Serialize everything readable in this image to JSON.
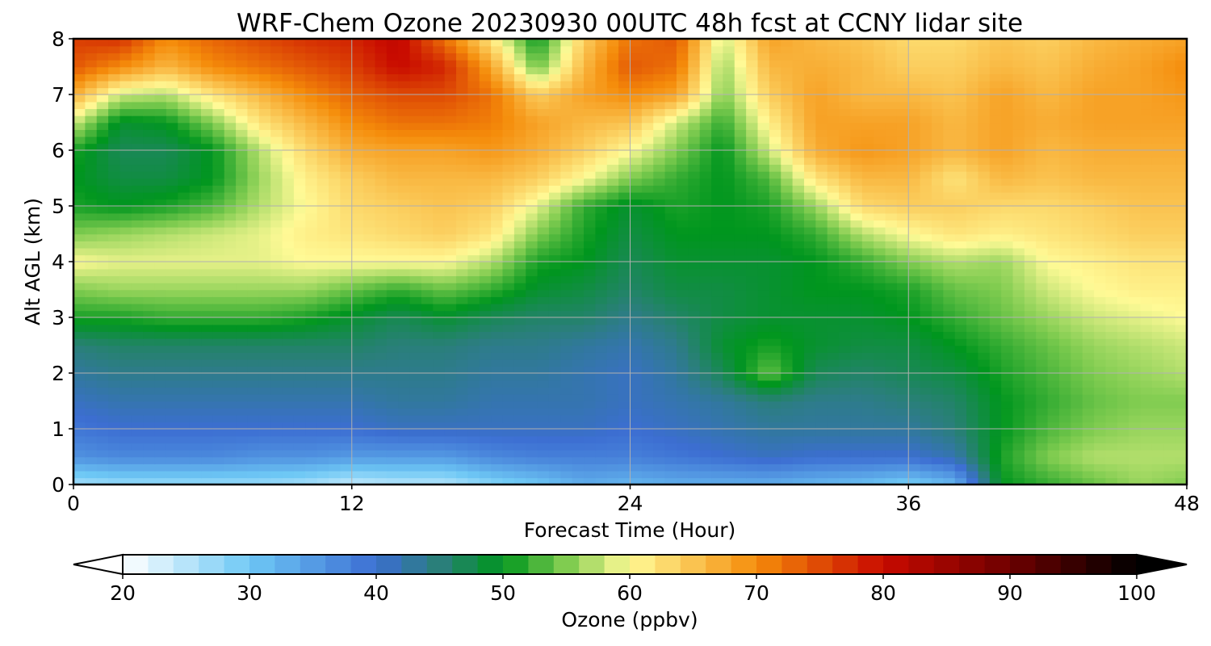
{
  "chart_data": {
    "type": "heatmap",
    "title": "WRF-Chem Ozone  20230930 00UTC 48h fcst at CCNY lidar site",
    "xlabel": "Forecast Time (Hour)",
    "ylabel": "Alt AGL (km)",
    "xlim": [
      0,
      48
    ],
    "ylim": [
      0,
      8
    ],
    "x_ticks": [
      0,
      12,
      24,
      36,
      48
    ],
    "y_ticks": [
      0,
      1,
      2,
      3,
      4,
      5,
      6,
      7,
      8
    ],
    "grid": true,
    "x": [
      0,
      2,
      4,
      6,
      8,
      10,
      12,
      14,
      16,
      18,
      20,
      22,
      24,
      26,
      28,
      30,
      32,
      34,
      36,
      38,
      40,
      42,
      44,
      46,
      48
    ],
    "y": [
      0,
      0.5,
      1,
      1.5,
      2,
      2.5,
      3,
      3.5,
      4,
      4.5,
      5,
      5.5,
      6,
      6.5,
      7,
      7.5,
      8
    ],
    "z": [
      [
        26,
        27,
        27,
        27,
        27,
        26,
        24,
        25,
        25,
        28,
        30,
        33,
        32,
        33,
        33,
        33,
        32,
        31,
        29,
        32,
        50,
        52,
        54,
        56,
        55
      ],
      [
        36,
        37,
        37,
        37,
        36,
        36,
        35,
        35,
        35,
        37,
        38,
        38,
        38,
        39,
        40,
        41,
        40,
        40,
        40,
        42,
        51,
        55,
        57,
        57,
        57
      ],
      [
        39,
        40,
        40,
        40,
        40,
        40,
        40,
        41,
        41,
        41,
        41,
        41,
        40,
        41,
        42,
        43,
        43,
        43,
        43,
        45,
        50,
        53,
        55,
        56,
        56
      ],
      [
        41,
        42,
        42,
        42,
        42,
        42,
        42,
        43,
        43,
        42,
        42,
        42,
        41,
        42,
        43,
        45,
        44,
        44,
        45,
        46,
        50,
        52,
        54,
        55,
        55
      ],
      [
        43,
        44,
        44,
        44,
        44,
        44,
        44,
        44,
        44,
        43,
        43,
        42,
        41,
        43,
        47,
        54,
        47,
        46,
        47,
        48,
        51,
        53,
        55,
        56,
        57
      ],
      [
        45,
        46,
        46,
        46,
        46,
        46,
        46,
        45,
        45,
        44,
        44,
        43,
        42,
        44,
        49,
        51,
        49,
        48,
        48,
        50,
        52,
        54,
        56,
        57,
        58
      ],
      [
        51,
        51,
        52,
        52,
        52,
        51,
        49,
        47,
        49,
        47,
        46,
        46,
        44,
        46,
        48,
        49,
        49,
        49,
        50,
        52,
        54,
        56,
        58,
        59,
        60
      ],
      [
        55,
        56,
        56,
        56,
        56,
        56,
        54,
        52,
        54,
        52,
        49,
        48,
        46,
        48,
        48,
        49,
        50,
        50,
        51,
        54,
        55,
        58,
        60,
        61,
        61
      ],
      [
        60,
        59,
        59,
        59,
        59,
        60,
        60,
        60,
        60,
        57,
        51,
        50,
        47,
        49,
        49,
        49,
        50,
        52,
        55,
        57,
        56,
        60,
        61,
        62,
        62
      ],
      [
        55,
        56,
        57,
        58,
        59,
        61,
        62,
        63,
        64,
        62,
        55,
        51,
        48,
        50,
        50,
        50,
        52,
        57,
        60,
        62,
        61,
        62,
        63,
        64,
        64
      ],
      [
        51,
        50,
        51,
        53,
        57,
        60,
        63,
        64,
        65,
        64,
        59,
        52,
        49,
        51,
        50,
        51,
        56,
        63,
        64,
        64,
        63,
        63,
        64,
        65,
        65
      ],
      [
        50,
        48,
        48,
        50,
        56,
        61,
        64,
        66,
        66,
        66,
        64,
        60,
        55,
        52,
        50,
        53,
        62,
        66,
        66,
        62,
        66,
        65,
        66,
        66,
        66
      ],
      [
        51,
        47,
        47,
        50,
        57,
        63,
        67,
        68,
        68,
        69,
        67,
        64,
        60,
        55,
        50,
        58,
        67,
        69,
        68,
        66,
        68,
        66,
        67,
        67,
        67
      ],
      [
        58,
        49,
        50,
        55,
        62,
        66,
        70,
        72,
        72,
        71,
        68,
        66,
        65,
        58,
        52,
        61,
        68,
        68,
        68,
        66,
        68,
        67,
        68,
        68,
        68
      ],
      [
        67,
        58,
        57,
        62,
        66,
        70,
        73,
        75,
        75,
        72,
        64,
        68,
        70,
        68,
        55,
        64,
        68,
        66,
        66,
        65,
        68,
        66,
        68,
        68,
        69
      ],
      [
        74,
        70,
        66,
        70,
        72,
        74,
        76,
        80,
        78,
        68,
        54,
        66,
        74,
        72,
        56,
        66,
        67,
        66,
        64,
        64,
        66,
        65,
        67,
        68,
        70
      ],
      [
        76,
        77,
        70,
        73,
        75,
        77,
        78,
        81,
        72,
        62,
        50,
        64,
        72,
        74,
        58,
        68,
        66,
        65,
        63,
        63,
        65,
        64,
        66,
        67,
        68
      ]
    ],
    "colorbar": {
      "label": "Ozone  (ppbv)",
      "ticks": [
        20,
        30,
        40,
        50,
        60,
        70,
        80,
        90,
        100
      ],
      "min": 20,
      "max": 100,
      "extend": "both",
      "orientation": "horizontal",
      "placement": "bottom"
    },
    "colormap_stops": [
      {
        "v": 20,
        "c": "#ffffff"
      },
      {
        "v": 30,
        "c": "#6ec8f5"
      },
      {
        "v": 40,
        "c": "#3c6ed2"
      },
      {
        "v": 45,
        "c": "#2a7f7a"
      },
      {
        "v": 50,
        "c": "#00961e"
      },
      {
        "v": 55,
        "c": "#80cc50"
      },
      {
        "v": 60,
        "c": "#fffa96"
      },
      {
        "v": 70,
        "c": "#f58c0a"
      },
      {
        "v": 80,
        "c": "#c80a00"
      },
      {
        "v": 90,
        "c": "#6e0000"
      },
      {
        "v": 100,
        "c": "#000000"
      }
    ]
  }
}
